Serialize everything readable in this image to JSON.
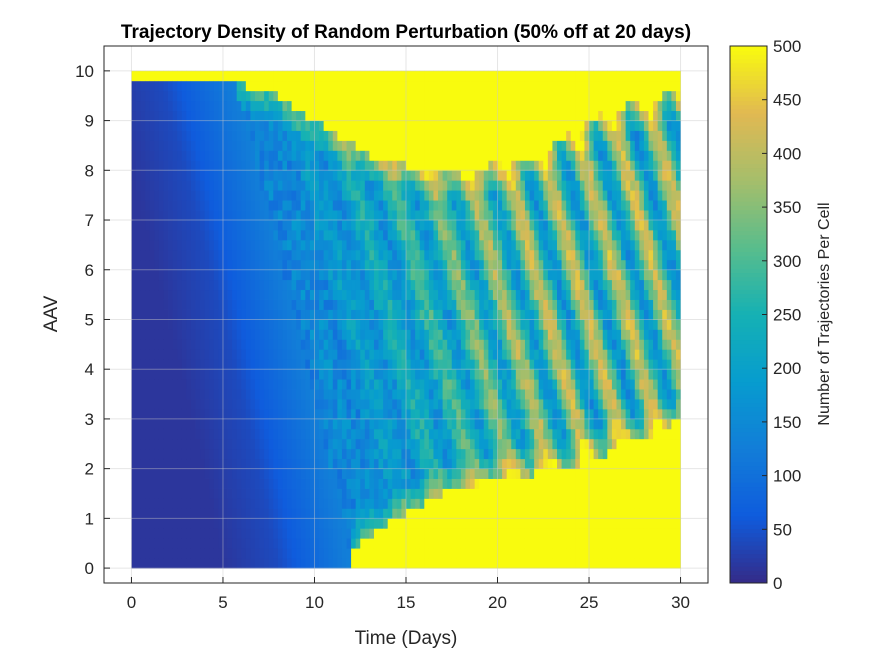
{
  "chart_data": {
    "type": "heatmap",
    "title": "Trajectory Density of Random Perturbation (50% off at 20 days)",
    "xlabel": "Time (Days)",
    "ylabel": "AAV",
    "xlim": [
      -1.5,
      31.5
    ],
    "ylim": [
      -0.3,
      10.5
    ],
    "data_extent": {
      "x": [
        0,
        30
      ],
      "y": [
        0,
        10
      ]
    },
    "x_ticks": [
      0,
      5,
      10,
      15,
      20,
      25,
      30
    ],
    "y_ticks": [
      0,
      1,
      2,
      3,
      4,
      5,
      6,
      7,
      8,
      9,
      10
    ],
    "grid": true,
    "colormap": "parula",
    "colorbar": {
      "label": "Number of Trajectories Per Cell",
      "range": [
        0,
        500
      ],
      "ticks": [
        0,
        50,
        100,
        150,
        200,
        250,
        300,
        350,
        400,
        450,
        500
      ]
    },
    "grid_size": {
      "x_bins": 120,
      "y_bins": 50
    },
    "density_description": {
      "saturated_top_band": [
        9.8,
        10.0
      ],
      "low_region_fade_time_at_bottom": 12,
      "low_region_fade_time_at_top": 5.5,
      "saturated_bottom_start_time": 12,
      "yellow_upper_boundary": [
        [
          5.5,
          9.8
        ],
        [
          8,
          9.5
        ],
        [
          10,
          9.0
        ],
        [
          13,
          8.3
        ],
        [
          17,
          7.9
        ],
        [
          22,
          8.3
        ],
        [
          26,
          9.2
        ],
        [
          30,
          9.6
        ]
      ],
      "yellow_lower_boundary": [
        [
          12,
          0.4
        ],
        [
          14,
          0.9
        ],
        [
          17,
          1.5
        ],
        [
          20,
          1.8
        ],
        [
          24,
          2.0
        ],
        [
          28,
          2.6
        ],
        [
          30,
          3.0
        ]
      ]
    }
  }
}
